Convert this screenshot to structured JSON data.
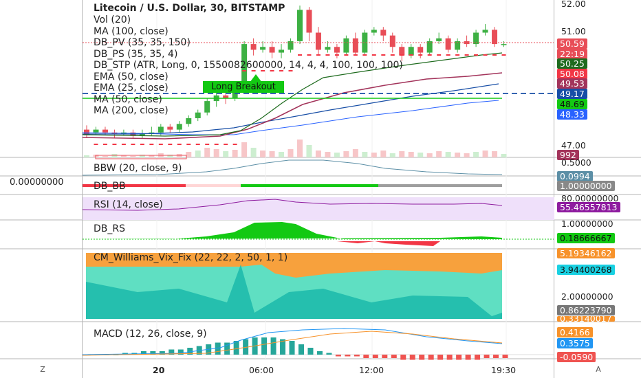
{
  "header": {
    "title": "Litecoin / U.S. Dollar, 30, BITSTAMP",
    "indicators": [
      "Vol (20)",
      "MA (100, close)",
      "DB_PV (35, 35, 150)",
      "DB_PS (35, 35, 4)",
      "DB_STP (ATR, Long, 0, 1550082600000, 14, 4, 4, 100, 100, 100)",
      "EMA (50, close)",
      "EMA (25, close)",
      "MA (50, close)",
      "MA (200, close)"
    ]
  },
  "annotation": {
    "label": "Long Breakout"
  },
  "price_axis": {
    "ticks": [
      "52.00",
      "51.00",
      "47.00"
    ],
    "tags": [
      {
        "text": "50.59",
        "color": "#e84d57"
      },
      {
        "text": "22:19",
        "color": "#e84d57"
      },
      {
        "text": "50.25",
        "color": "#1e6b1e"
      },
      {
        "text": "50.08",
        "color": "#f23645"
      },
      {
        "text": "49.53",
        "color": "#a3345b"
      },
      {
        "text": "49.17",
        "color": "#174ea6"
      },
      {
        "text": "48.69",
        "color": "#13c913"
      },
      {
        "text": "48.33",
        "color": "#2962ff"
      },
      {
        "text": "992",
        "color": "#a3345b"
      }
    ]
  },
  "panes": {
    "bbw": {
      "label": "BBW (20, close, 9)",
      "tick": "0.5000",
      "tag": "0.0994"
    },
    "dbbb": {
      "label": "DB_BB",
      "left_value": "0.00000000",
      "tag": "1.00000000"
    },
    "rsi": {
      "label": "RSI (14, close)",
      "tick": "80.00000000",
      "tag": "55.46557813"
    },
    "dbrs": {
      "label": "DB_RS",
      "tick": "1.00000000",
      "tag": "0.18666667"
    },
    "vix": {
      "label": "CM_Williams_Vix_Fix (22, 22, 2, 50, 1, 1)",
      "tick": "2.00000000",
      "tags": [
        "5.19346162",
        "3.94400268",
        "0.86223790",
        "0.33140017"
      ]
    },
    "macd": {
      "label": "MACD (12, 26, close, 9)",
      "tags": [
        "0.4166",
        "0.3575",
        "-0.0590"
      ]
    }
  },
  "time_axis": {
    "labels": [
      "20",
      "06:00",
      "12:00",
      "19:30"
    ],
    "left_button": "Z",
    "right_button": "A"
  },
  "colors": {
    "up": "#26a69a",
    "down": "#ef5350",
    "candle_up": "#3db043",
    "candle_down": "#e84d57",
    "grid": "#eeeeee"
  }
}
